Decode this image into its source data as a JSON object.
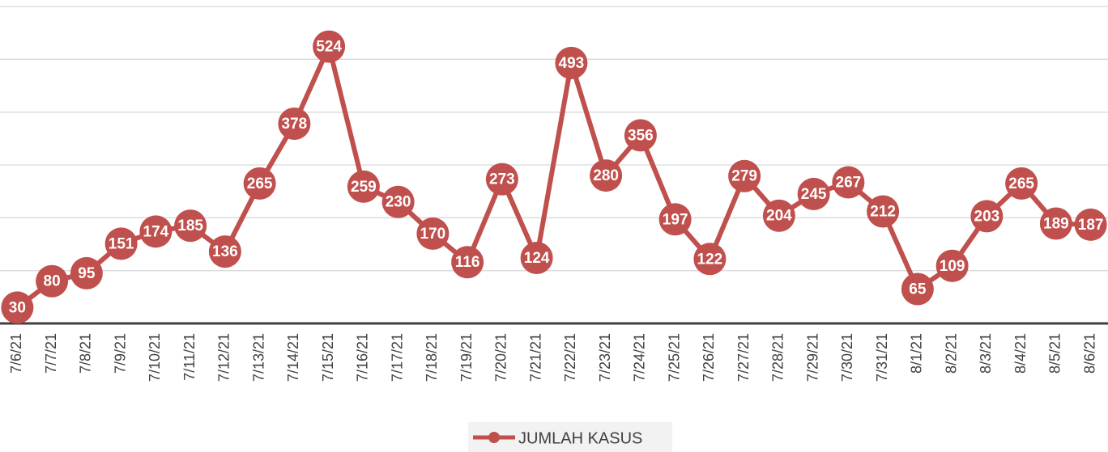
{
  "chart_data": {
    "type": "line",
    "categories": [
      "7/6/21",
      "7/7/21",
      "7/8/21",
      "7/9/21",
      "7/10/21",
      "7/11/21",
      "7/12/21",
      "7/13/21",
      "7/14/21",
      "7/15/21",
      "7/16/21",
      "7/17/21",
      "7/18/21",
      "7/19/21",
      "7/20/21",
      "7/21/21",
      "7/22/21",
      "7/23/21",
      "7/24/21",
      "7/25/21",
      "7/26/21",
      "7/27/21",
      "7/28/21",
      "7/29/21",
      "7/30/21",
      "7/31/21",
      "8/1/21",
      "8/2/21",
      "8/3/21",
      "8/4/21",
      "8/5/21",
      "8/6/21"
    ],
    "series": [
      {
        "name": "JUMLAH KASUS",
        "color": "#c0504d",
        "values": [
          30,
          80,
          95,
          151,
          174,
          185,
          136,
          265,
          378,
          524,
          259,
          230,
          170,
          116,
          273,
          124,
          493,
          280,
          356,
          197,
          122,
          279,
          204,
          245,
          267,
          212,
          65,
          109,
          203,
          265,
          189,
          187
        ]
      }
    ],
    "ylim": [
      0,
      600
    ],
    "yticks": [
      0,
      100,
      200,
      300,
      400,
      500,
      600
    ],
    "grid": true,
    "legend": "bottom"
  }
}
